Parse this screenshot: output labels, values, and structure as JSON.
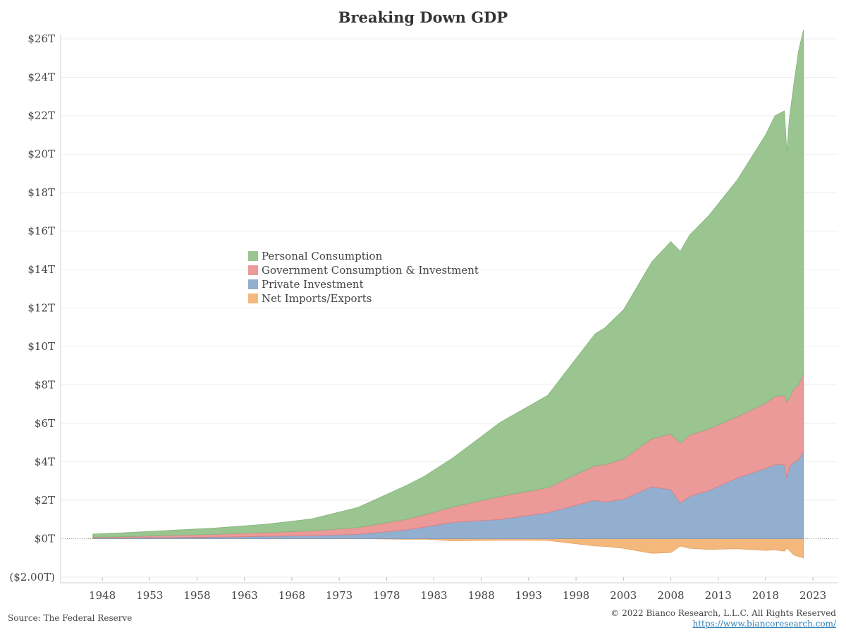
{
  "chart_data": {
    "type": "area",
    "stacked": true,
    "title": "Breaking Down GDP",
    "ylabel": "",
    "xlabel": "",
    "ylim": [
      -2,
      26
    ],
    "xlim": [
      1943.6,
      2025.6
    ],
    "y_ticks": [
      {
        "value": 26,
        "label": "$26T"
      },
      {
        "value": 24,
        "label": "$24T"
      },
      {
        "value": 22,
        "label": "$22T"
      },
      {
        "value": 20,
        "label": "$20T"
      },
      {
        "value": 18,
        "label": "$18T"
      },
      {
        "value": 16,
        "label": "$16T"
      },
      {
        "value": 14,
        "label": "$14T"
      },
      {
        "value": 12,
        "label": "$12T"
      },
      {
        "value": 10,
        "label": "$10T"
      },
      {
        "value": 8,
        "label": "$8T"
      },
      {
        "value": 6,
        "label": "$6T"
      },
      {
        "value": 4,
        "label": "$4T"
      },
      {
        "value": 2,
        "label": "$2T"
      },
      {
        "value": 0,
        "label": "$0T"
      },
      {
        "value": -2,
        "label": "($2.00T)"
      }
    ],
    "x_ticks": [
      1948,
      1953,
      1958,
      1963,
      1968,
      1973,
      1978,
      1983,
      1988,
      1993,
      1998,
      2003,
      2008,
      2013,
      2018,
      2023
    ],
    "grid": true,
    "legend_position": "center-left",
    "x": [
      1947,
      1950,
      1955,
      1960,
      1965,
      1970,
      1975,
      1980,
      1982,
      1985,
      1990,
      1995,
      2000,
      2001,
      2003,
      2006,
      2008,
      2009,
      2010,
      2012,
      2015,
      2018,
      2019,
      2020.0,
      2020.25,
      2020.5,
      2021,
      2021.5,
      2022
    ],
    "series": [
      {
        "name": "Net Imports/Exports",
        "color": "#f5b87c",
        "values": [
          0.01,
          0.0,
          0.0,
          0.0,
          0.0,
          0.0,
          0.0,
          -0.03,
          -0.02,
          -0.11,
          -0.08,
          -0.09,
          -0.38,
          -0.4,
          -0.5,
          -0.76,
          -0.72,
          -0.38,
          -0.5,
          -0.56,
          -0.52,
          -0.61,
          -0.58,
          -0.65,
          -0.5,
          -0.6,
          -0.85,
          -0.92,
          -1.0
        ]
      },
      {
        "name": "Private Investment",
        "color": "#93afd0",
        "values": [
          0.04,
          0.05,
          0.07,
          0.08,
          0.12,
          0.15,
          0.23,
          0.45,
          0.6,
          0.85,
          1.0,
          1.35,
          2.0,
          1.9,
          2.05,
          2.7,
          2.55,
          1.85,
          2.2,
          2.5,
          3.15,
          3.65,
          3.85,
          3.85,
          3.15,
          3.7,
          4.0,
          4.1,
          4.55
        ]
      },
      {
        "name": "Government Consumption & Investment",
        "color": "#eb9999",
        "values": [
          0.04,
          0.05,
          0.1,
          0.15,
          0.2,
          0.25,
          0.35,
          0.55,
          0.65,
          0.8,
          1.2,
          1.3,
          1.8,
          1.95,
          2.1,
          2.5,
          2.9,
          3.1,
          3.2,
          3.2,
          3.2,
          3.4,
          3.55,
          3.6,
          3.95,
          3.6,
          3.8,
          3.9,
          4.05
        ]
      },
      {
        "name": "Personal Consumption",
        "color": "#9ac590",
        "values": [
          0.16,
          0.2,
          0.26,
          0.33,
          0.42,
          0.62,
          1.05,
          1.75,
          2.0,
          2.55,
          3.85,
          4.8,
          6.85,
          7.1,
          7.75,
          9.2,
          10.0,
          10.0,
          10.4,
          11.1,
          12.3,
          13.95,
          14.6,
          14.8,
          13.0,
          14.5,
          15.9,
          17.4,
          17.85
        ]
      }
    ]
  },
  "footer": {
    "source": "Source: The Federal Reserve",
    "copyright": "© 2022 Bianco Research, L.L.C. All Rights Reserved",
    "url": "https://www.biancoresearch.com/"
  }
}
